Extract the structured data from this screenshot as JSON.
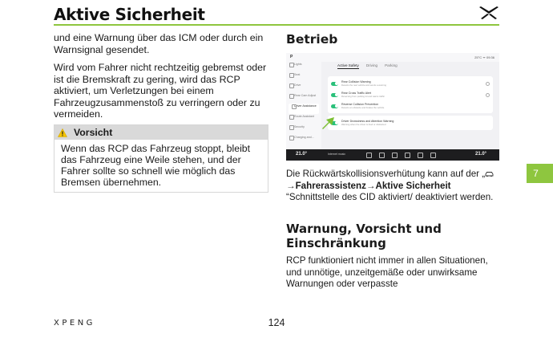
{
  "header": {
    "title": "Aktive Sicherheit",
    "accent_color": "#8ec63f"
  },
  "left": {
    "paragraphs": [
      "und eine Warnung über das ICM oder durch ein Warnsignal gesendet.",
      "Wird vom Fahrer nicht rechtzeitig gebremst oder ist die Bremskraft zu gering, wird das RCP aktiviert, um Verletzungen bei einem Fahrzeugzusammenstoß zu verringern oder zu vermeiden."
    ],
    "caution": {
      "label": "Vorsicht",
      "icon": "warning-triangle-icon",
      "text": "Wenn das RCP das Fahrzeug stoppt, bleibt das Fahrzeug eine Weile stehen, und der Fahrer sollte so schnell wie möglich das Bremsen übernehmen."
    }
  },
  "right": {
    "heading_operation": "Betrieb",
    "screen": {
      "status_left": "P",
      "status_right": "25°C  ᯤ  09:36",
      "tabs": [
        "Active Safety",
        "Driving",
        "Parking"
      ],
      "active_tab": "Active Safety",
      "sidebar": [
        "Lights",
        "Seat",
        "Drive",
        "Rear Cam Adjust",
        "Driver Assistance",
        "Route Assistant",
        "Security",
        "Charging and..."
      ],
      "selected_sidebar": "Driver Assistance",
      "rows": [
        {
          "title": "Rear Collision Warning",
          "sub": "Detects the rear vehicle and sends a warning"
        },
        {
          "title": "Rear Cross Traffic Alert",
          "sub": "Reversing from parking lot and warns traffic"
        },
        {
          "title": "Reverse Collision Prevention",
          "sub": "Detects an obstacle and brakes the vehicle"
        },
        {
          "title": "Driver Drowsiness and Attention Warning",
          "sub": "Warning when the driver is tired or distracted"
        }
      ],
      "temp_left": "21.0°",
      "temp_right": "21.0°",
      "media_label": "Internet music"
    },
    "paragraph_1_pre": "Die Rückwärtskollisionsverhütung kann auf der „",
    "paragraph_1_icon": "car-icon",
    "paragraph_1_path": "→Fahrerassistenz→Aktive Sicherheit",
    "paragraph_1_post": " “Schnittstelle des CID aktiviert/ deaktiviert werden.",
    "heading_warning": "Warnung, Vorsicht und Einschränkung",
    "paragraph_2": "RCP funktioniert nicht immer in allen Situationen, und unnötige, unzeitgemäße oder unwirksame Warnungen oder verpasste"
  },
  "chapter_number": "7",
  "footer": {
    "brand": "XPENG",
    "page_number": "124"
  }
}
